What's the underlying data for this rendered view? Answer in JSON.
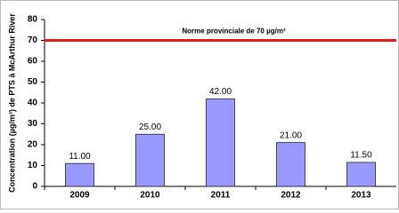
{
  "chart_data": {
    "type": "bar",
    "y_label": "Concentration (µg/m³) de PTS à McArthur River",
    "categories": [
      "2009",
      "2010",
      "2011",
      "2012",
      "2013"
    ],
    "values": [
      11,
      25,
      42,
      21,
      11.5
    ],
    "value_labels": [
      "11.00",
      "25.00",
      "42.00",
      "21.00",
      "11.50"
    ],
    "color": "#9999ff",
    "ylim": [
      0,
      80
    ],
    "yticks": [
      0,
      10,
      20,
      30,
      40,
      50,
      60,
      70,
      80
    ],
    "grid": false,
    "reference_line": {
      "value": 70,
      "label": "Norme provinciale de 70 µg/m³",
      "color": "#e31a1c"
    }
  }
}
